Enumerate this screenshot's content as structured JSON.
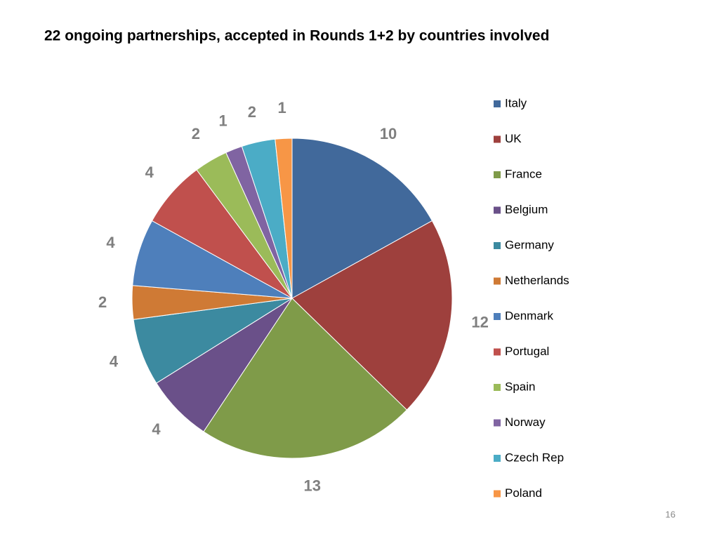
{
  "chart_data": {
    "type": "pie",
    "title": "22 ongoing partnerships, accepted in Rounds 1+2  by countries involved",
    "categories": [
      "Italy",
      "UK",
      "France",
      "Belgium",
      "Germany",
      "Netherlands",
      "Denmark",
      "Portugal",
      "Spain",
      "Norway",
      "Czech Rep",
      "Poland"
    ],
    "values": [
      10,
      12,
      13,
      4,
      4,
      2,
      4,
      4,
      2,
      1,
      2,
      1
    ],
    "colors": [
      "#41699b",
      "#9e403d",
      "#7f9b49",
      "#6a5089",
      "#3c8aa0",
      "#cf7a35",
      "#4e7fbb",
      "#c0504d",
      "#9bbb59",
      "#8064a2",
      "#4bacc6",
      "#f79646"
    ],
    "legend": "right"
  },
  "page_number": "16"
}
